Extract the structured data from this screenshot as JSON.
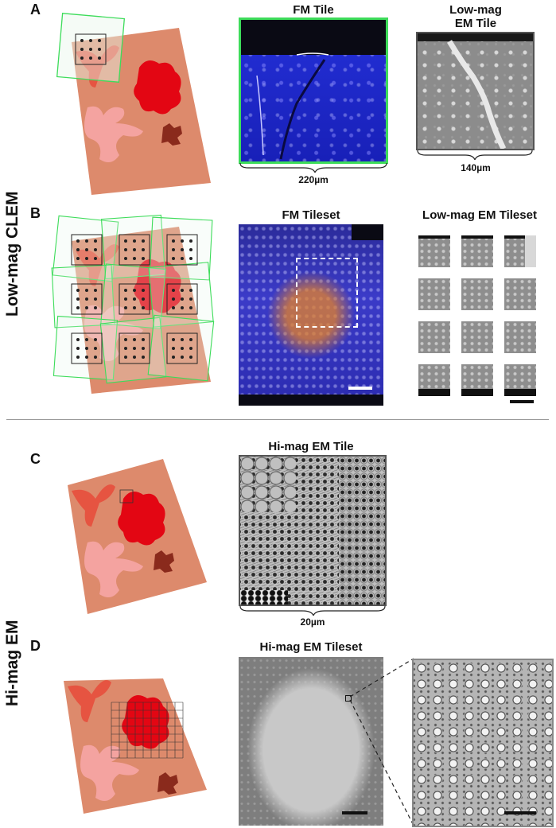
{
  "side_labels": {
    "top": "Low-mag CLEM",
    "bottom": "Hi-mag EM"
  },
  "panels": {
    "A": {
      "letter": "A",
      "fm_title": "FM Tile",
      "em_title_line1": "Low-mag",
      "em_title_line2": "EM Tile",
      "fm_scale": "220µm",
      "em_scale": "140µm"
    },
    "B": {
      "letter": "B",
      "fm_title": "FM Tileset",
      "em_title": "Low-mag EM Tileset"
    },
    "C": {
      "letter": "C",
      "em_title": "Hi-mag EM Tile",
      "em_scale": "20µm"
    },
    "D": {
      "letter": "D",
      "em_title": "Hi-mag EM Tileset"
    }
  },
  "colors": {
    "tissue": "#dd8a6c",
    "tissue_dark": "#c9704f",
    "red_region": "#e30613",
    "pink_region": "#f4a3a0",
    "brown_region": "#8a2a1c",
    "green_frame": "#3ddc5a",
    "fm_blue": "#2a2ad6"
  }
}
